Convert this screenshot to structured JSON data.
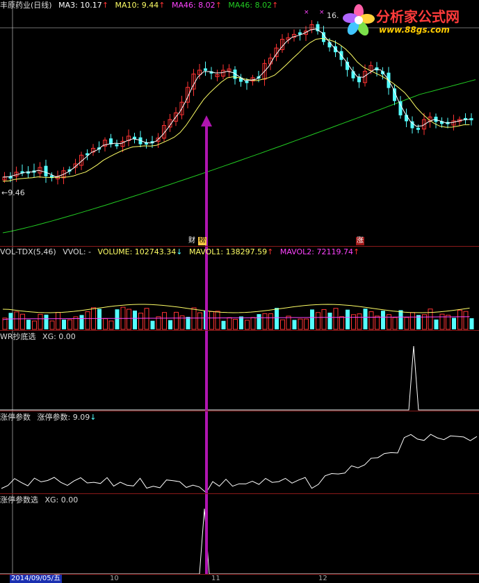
{
  "main": {
    "title": "丰原药业(日线)",
    "ma3": "MA3: 10.17",
    "ma10": "MA10: 9.44",
    "ma46a": "MA46: 8.02",
    "ma46b": "MA46: 8.02",
    "up_arrow": "↑",
    "high_label": "16.",
    "low_label": "←9.46",
    "badge_cai": "财",
    "badge_bang": "榜",
    "badge_zhang": "涨"
  },
  "volume": {
    "title": "VOL-TDX(5,46)",
    "vvol": "VVOL: -",
    "volume": "VOLUME: 102743.34",
    "down_arrow": "↓",
    "mavol1": "MAVOL1: 138297.59",
    "mavol2": "MAVOL2: 72119.74"
  },
  "wr": {
    "title": "WR抄底选",
    "xg": "XG: 0.00"
  },
  "zt": {
    "title": "涨停参数",
    "value": "涨停参数: 9.09",
    "down_arrow": "↓"
  },
  "ztxg": {
    "title": "涨停参数选",
    "xg": "XG: 0.00"
  },
  "axis": {
    "date": "2014/09/05/五",
    "tick_10": "10",
    "tick_11": "11",
    "tick_12": "12"
  },
  "logo": {
    "name": "分析家公式网",
    "url": "www.88gs.com"
  },
  "colors": {
    "up": "#ff3333",
    "down": "#54ffff",
    "ma3": "#ffffff",
    "ma10": "#ffff66",
    "ma46": "#22cc22",
    "purple": "#b015b0",
    "separator": "#8b1a1a"
  }
}
